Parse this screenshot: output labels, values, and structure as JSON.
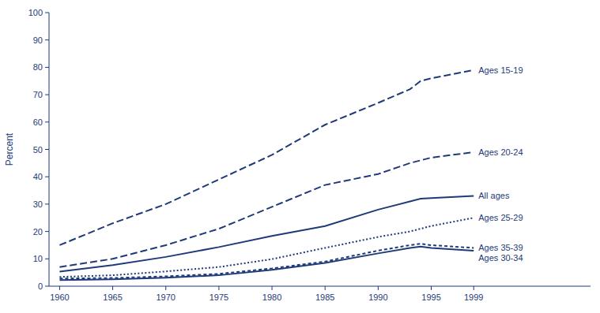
{
  "chart_data": {
    "type": "line",
    "x": [
      1960,
      1965,
      1970,
      1975,
      1980,
      1985,
      1990,
      1993,
      1994,
      1995,
      1999
    ],
    "series": [
      {
        "name": "Ages 15-19",
        "values": [
          15,
          23,
          30,
          39,
          48,
          59,
          67,
          72,
          75,
          76,
          79
        ],
        "line_style": "dashed"
      },
      {
        "name": "Ages 20-24",
        "values": [
          7,
          10,
          15,
          21,
          29,
          37,
          41,
          45,
          46,
          47,
          49
        ],
        "line_style": "dashed"
      },
      {
        "name": "All ages",
        "values": [
          5.3,
          7.7,
          10.7,
          14.3,
          18.4,
          22,
          28,
          31,
          32,
          32.2,
          33
        ],
        "line_style": "solid"
      },
      {
        "name": "Ages 25-29",
        "values": [
          3.4,
          4.0,
          5.4,
          7.0,
          9.9,
          14,
          18,
          20,
          21,
          22,
          25
        ],
        "line_style": "dotted"
      },
      {
        "name": "Ages 35-39",
        "values": [
          2.8,
          3.0,
          3.6,
          4.5,
          6.5,
          9,
          13,
          15,
          15.5,
          15,
          14
        ],
        "line_style": "short-dashed"
      },
      {
        "name": "Ages 30-34",
        "values": [
          2.2,
          2.5,
          3.1,
          4.0,
          6.0,
          8.5,
          12,
          14,
          14.5,
          14,
          13
        ],
        "line_style": "solid"
      }
    ],
    "y_label": "Percent",
    "color": "#1e3a78",
    "xlim": [
      1959,
      2010
    ],
    "ylim": [
      0,
      100
    ],
    "xticks": [
      1960,
      1965,
      1970,
      1975,
      1980,
      1985,
      1990,
      1995,
      1999
    ],
    "yticks": [
      0,
      10,
      20,
      30,
      40,
      50,
      60,
      70,
      80,
      90,
      100
    ],
    "grid": false
  }
}
